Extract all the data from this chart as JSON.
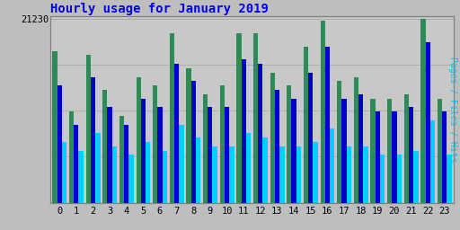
{
  "title": "Hourly usage for January 2019",
  "ylabel_right": "Pages / Files / Hits",
  "y_max_label": "21230",
  "categories": [
    0,
    1,
    2,
    3,
    4,
    5,
    6,
    7,
    8,
    9,
    10,
    11,
    12,
    13,
    14,
    15,
    16,
    17,
    18,
    19,
    20,
    21,
    22,
    23
  ],
  "pages": [
    17500,
    10500,
    17000,
    13000,
    10000,
    14500,
    13500,
    19500,
    15500,
    12500,
    13500,
    19500,
    19500,
    15000,
    13500,
    18000,
    21000,
    14000,
    14500,
    12000,
    12000,
    12500,
    21200,
    12000
  ],
  "files": [
    13500,
    9000,
    14500,
    11000,
    9000,
    12000,
    11000,
    16000,
    14000,
    11000,
    11000,
    16500,
    16000,
    13000,
    12000,
    15000,
    18000,
    12000,
    12500,
    10500,
    10500,
    11000,
    18500,
    10500
  ],
  "hits": [
    7000,
    6000,
    8000,
    6500,
    5500,
    7000,
    6000,
    9000,
    7500,
    6500,
    6500,
    8000,
    7500,
    6500,
    6500,
    7000,
    8500,
    6500,
    6500,
    5500,
    5500,
    6000,
    9500,
    5500
  ],
  "pages_color": "#2E8B57",
  "files_color": "#0000CD",
  "hits_color": "#00CFFF",
  "bg_color": "#BEBEBE",
  "plot_bg_color": "#C8C8C8",
  "border_color": "#808080",
  "title_color": "#0000EE",
  "ylabel_color": "#00BFFF",
  "bar_width": 0.28,
  "ylim": [
    0,
    21500
  ],
  "ytick_val": 21230,
  "title_fontsize": 10,
  "tick_fontsize": 7.5
}
